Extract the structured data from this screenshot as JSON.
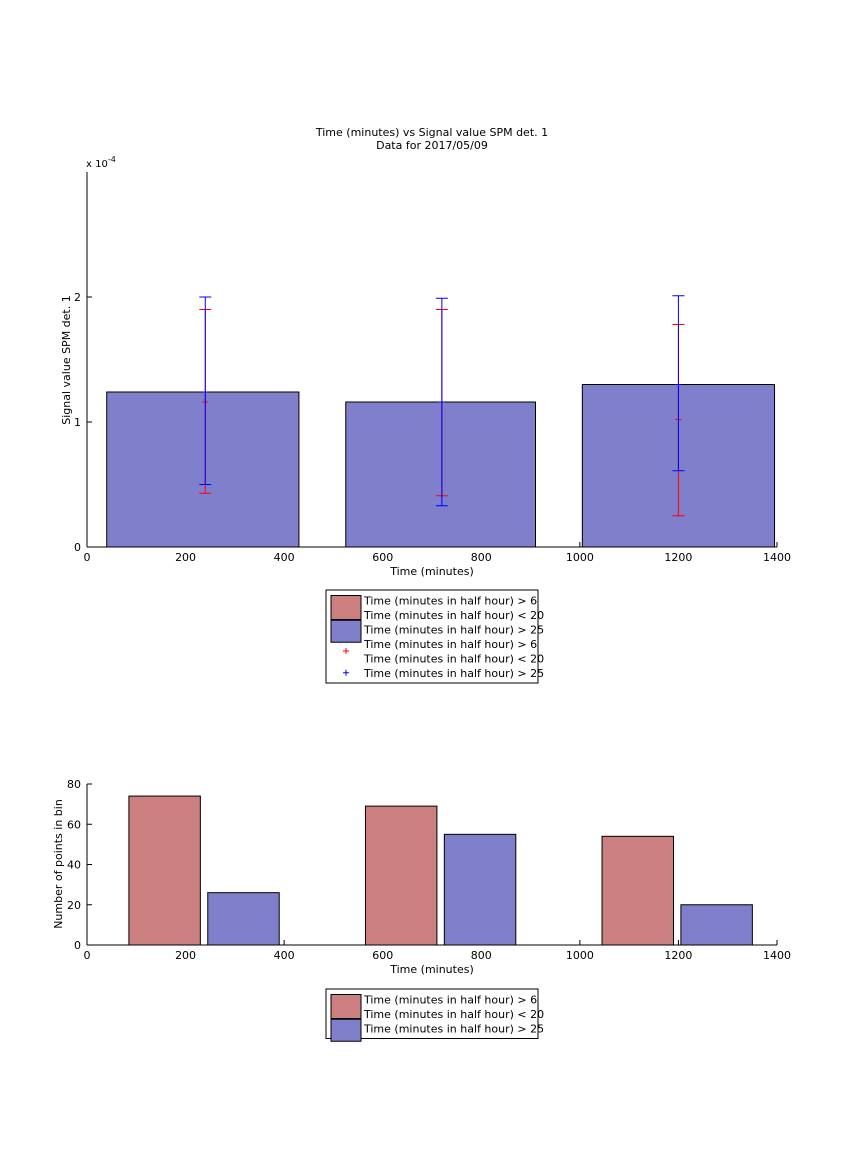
{
  "colors": {
    "red_fill": "#cc7f7f",
    "blue_fill": "#7f7fcc",
    "red_mark": "#ff0000",
    "blue_mark": "#0000ff",
    "axis": "#000000"
  },
  "chart_data": [
    {
      "type": "bar",
      "title": "Time (minutes) vs Signal value SPM det. 1",
      "subtitle": "Data for 2017/05/09",
      "xlabel": "Time (minutes)",
      "ylabel": "Signal value SPM det. 1",
      "y_exponent_label": "x 10",
      "y_exponent_power": "-4",
      "xlim": [
        0,
        1400
      ],
      "ylim": [
        0,
        3
      ],
      "xticks": [
        "0",
        "200",
        "400",
        "600",
        "800",
        "1000",
        "1200",
        "1400"
      ],
      "yticks": [
        "0",
        "1",
        "2"
      ],
      "bars": [
        {
          "x_start": 40,
          "x_end": 430,
          "value": 1.24
        },
        {
          "x_start": 525,
          "x_end": 910,
          "value": 1.16
        },
        {
          "x_start": 1005,
          "x_end": 1395,
          "value": 1.3
        }
      ],
      "errorbars": [
        {
          "series": "red",
          "x": 240,
          "low": 0.43,
          "mid": 1.16,
          "high": 1.9
        },
        {
          "series": "blue",
          "x": 240,
          "low": 0.5,
          "mid": 1.24,
          "high": 2.0
        },
        {
          "series": "red",
          "x": 720,
          "low": 0.41,
          "mid": 1.16,
          "high": 1.9
        },
        {
          "series": "blue",
          "x": 720,
          "low": 0.33,
          "mid": 1.16,
          "high": 1.99
        },
        {
          "series": "red",
          "x": 1200,
          "low": 0.25,
          "mid": 1.02,
          "high": 1.78
        },
        {
          "series": "blue",
          "x": 1200,
          "low": 0.61,
          "mid": 1.3,
          "high": 2.01
        }
      ],
      "legend": {
        "placement": "below",
        "entries": [
          {
            "kind": "patch",
            "color": "red",
            "lines": [
              "Time (minutes in half hour) > 6",
              "Time (minutes in half hour) < 20"
            ]
          },
          {
            "kind": "patch",
            "color": "blue",
            "lines": [
              "Time (minutes in half hour) > 25"
            ]
          },
          {
            "kind": "marker",
            "color": "red",
            "lines": [
              "Time (minutes in half hour) > 6",
              "Time (minutes in half hour) < 20"
            ]
          },
          {
            "kind": "marker",
            "color": "blue",
            "lines": [
              "Time (minutes in half hour) > 25"
            ]
          }
        ]
      }
    },
    {
      "type": "bar",
      "xlabel": "Time (minutes)",
      "ylabel": "Number of points in bin",
      "xlim": [
        0,
        1400
      ],
      "ylim": [
        0,
        80
      ],
      "xticks": [
        "0",
        "200",
        "400",
        "600",
        "800",
        "1000",
        "1200",
        "1400"
      ],
      "yticks": [
        "0",
        "20",
        "40",
        "60",
        "80"
      ],
      "series": [
        {
          "color": "red",
          "bars": [
            {
              "x_start": 85,
              "x_end": 230,
              "value": 74
            },
            {
              "x_start": 565,
              "x_end": 710,
              "value": 69
            },
            {
              "x_start": 1045,
              "x_end": 1190,
              "value": 54
            }
          ]
        },
        {
          "color": "blue",
          "bars": [
            {
              "x_start": 245,
              "x_end": 390,
              "value": 26
            },
            {
              "x_start": 725,
              "x_end": 870,
              "value": 55
            },
            {
              "x_start": 1205,
              "x_end": 1350,
              "value": 20
            }
          ]
        }
      ],
      "legend": {
        "placement": "below",
        "entries": [
          {
            "kind": "patch",
            "color": "red",
            "lines": [
              "Time (minutes in half hour) > 6",
              "Time (minutes in half hour) < 20"
            ]
          },
          {
            "kind": "patch",
            "color": "blue",
            "lines": [
              "Time (minutes in half hour) > 25"
            ]
          }
        ]
      }
    }
  ]
}
